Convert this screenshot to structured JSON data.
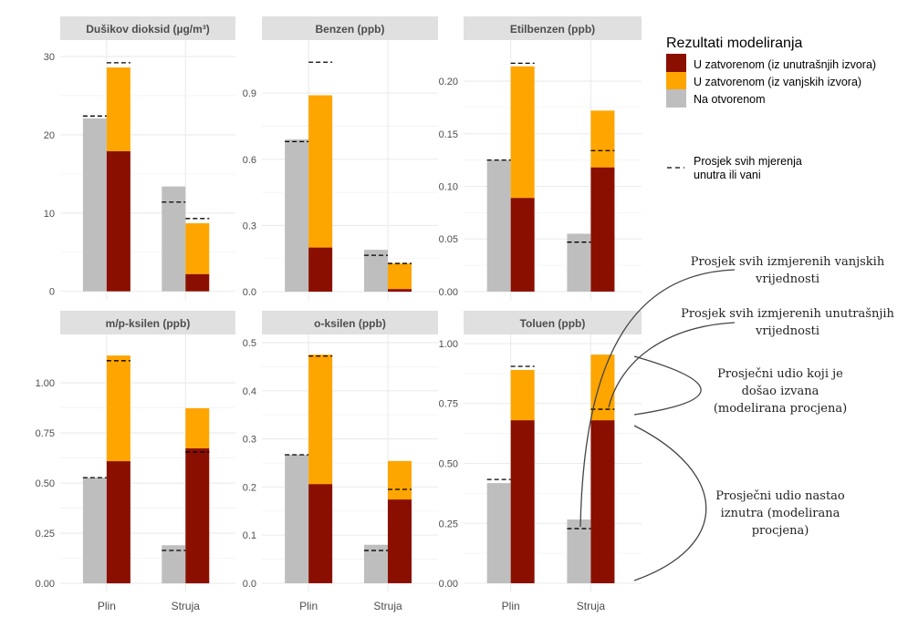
{
  "chart_data": {
    "type": "bar",
    "subtype": "faceted grouped/stacked bar with measured-mean dashes",
    "categories": [
      "Plin",
      "Struja"
    ],
    "colors": {
      "indoor_source": "#8b0f00",
      "outdoor_source": "#ffa500",
      "outdoor": "#bebebe",
      "dash": "#000000",
      "strip": "#e0e0e0",
      "grid": "#ebebeb"
    },
    "panels": [
      {
        "title": "Dušikov dioksid (µg/m³)",
        "ylim": [
          -1.2,
          32.1
        ],
        "ticks": [
          0,
          10,
          20,
          30
        ],
        "tick_labels": [
          "0",
          "10",
          "20",
          "30"
        ],
        "outdoor": [
          22.1,
          13.4
        ],
        "indoor_from_indoor": [
          17.9,
          2.2
        ],
        "indoor_total": [
          28.6,
          8.7
        ],
        "measured_outdoor": [
          22.4,
          11.4
        ],
        "measured_indoor": [
          29.2,
          9.3
        ]
      },
      {
        "title": "Benzen (ppb)",
        "ylim": [
          -0.041,
          1.14
        ],
        "ticks": [
          0,
          0.3,
          0.6,
          0.9
        ],
        "tick_labels": [
          "0.0",
          "0.3",
          "0.6",
          "0.9"
        ],
        "outdoor": [
          0.69,
          0.19
        ],
        "indoor_from_indoor": [
          0.2,
          0.012
        ],
        "indoor_total": [
          0.89,
          0.128
        ],
        "measured_outdoor": [
          0.68,
          0.165
        ],
        "measured_indoor": [
          1.04,
          0.128
        ]
      },
      {
        "title": "Etilbenzen (ppb)",
        "ylim": [
          -0.0087,
          0.239
        ],
        "ticks": [
          0,
          0.05,
          0.1,
          0.15,
          0.2
        ],
        "tick_labels": [
          "0.00",
          "0.05",
          "0.10",
          "0.15",
          "0.20"
        ],
        "outdoor": [
          0.125,
          0.055
        ],
        "indoor_from_indoor": [
          0.089,
          0.118
        ],
        "indoor_total": [
          0.214,
          0.172
        ],
        "measured_outdoor": [
          0.125,
          0.047
        ],
        "measured_indoor": [
          0.217,
          0.134
        ]
      },
      {
        "title": "m/p-ksilen (ppb)",
        "ylim": [
          -0.045,
          1.241
        ],
        "ticks": [
          0,
          0.25,
          0.5,
          0.75,
          1.0
        ],
        "tick_labels": [
          "0.00",
          "0.25",
          "0.50",
          "0.75",
          "1.00"
        ],
        "outdoor": [
          0.527,
          0.19
        ],
        "indoor_from_indoor": [
          0.609,
          0.673
        ],
        "indoor_total": [
          1.136,
          0.873
        ],
        "measured_outdoor": [
          0.527,
          0.164
        ],
        "measured_indoor": [
          1.11,
          0.655
        ]
      },
      {
        "title": "o-ksilen (ppb)",
        "ylim": [
          -0.019,
          0.517
        ],
        "ticks": [
          0,
          0.1,
          0.2,
          0.3,
          0.4,
          0.5
        ],
        "tick_labels": [
          "0.0",
          "0.1",
          "0.2",
          "0.3",
          "0.4",
          "0.5"
        ],
        "outdoor": [
          0.267,
          0.08
        ],
        "indoor_from_indoor": [
          0.206,
          0.174
        ],
        "indoor_total": [
          0.475,
          0.254
        ],
        "measured_outdoor": [
          0.267,
          0.068
        ],
        "measured_indoor": [
          0.472,
          0.195
        ]
      },
      {
        "title": "Toluen (ppb)",
        "ylim": [
          -0.038,
          1.038
        ],
        "ticks": [
          0,
          0.25,
          0.5,
          0.75,
          1.0
        ],
        "tick_labels": [
          "0.00",
          "0.25",
          "0.50",
          "0.75",
          "1.00"
        ],
        "outdoor": [
          0.418,
          0.266
        ],
        "indoor_from_indoor": [
          0.68,
          0.68
        ],
        "indoor_total": [
          0.89,
          0.954
        ],
        "measured_outdoor": [
          0.433,
          0.228
        ],
        "measured_indoor": [
          0.905,
          0.726
        ]
      }
    ],
    "legend": {
      "title": "Rezultati modeliranja",
      "items": [
        "U zatvorenom (iz unutrašnjih izvora)",
        "U zatvorenom (iz vanjskih izvora)",
        "Na otvorenom"
      ],
      "dash_label_1": "Prosjek svih mjerenja",
      "dash_label_2": "unutra ili vani",
      "placement": "right"
    },
    "annotations": [
      [
        "Prosjek svih izmjerenih vanjskih",
        "vrijednosti"
      ],
      [
        "Prosjek svih izmjerenih unutrašnjih",
        "vrijednosti"
      ],
      [
        "Prosječni udio koji je",
        "došao izvana",
        "(modelirana procjena)"
      ],
      [
        "Prosječni udio nastao",
        "iznutra (modelirana",
        "procjena)"
      ]
    ]
  }
}
